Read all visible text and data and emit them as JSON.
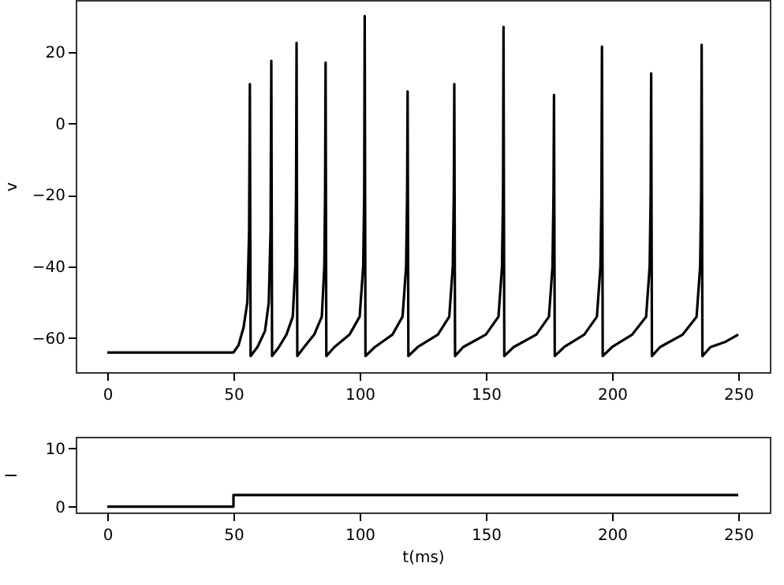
{
  "chart_data": [
    {
      "type": "line",
      "ylabel": "v",
      "color": "#000000",
      "grid": false,
      "x": [
        0,
        50,
        52,
        54,
        55.5,
        56.2,
        56.5,
        56.8,
        59.5,
        62.5,
        64,
        64.7,
        65,
        65.3,
        68,
        71,
        73.5,
        74.5,
        74.8,
        75,
        75.3,
        78,
        82,
        85,
        86,
        86.3,
        86.5,
        86.8,
        90,
        96,
        100,
        101.4,
        101.8,
        102,
        102.3,
        106,
        113,
        117,
        118.4,
        118.8,
        119,
        119.3,
        123,
        131,
        135.5,
        136.9,
        137.3,
        137.5,
        137.8,
        141,
        150,
        155,
        156.4,
        156.8,
        157,
        157.3,
        161,
        170,
        175,
        176.4,
        176.8,
        177,
        177.3,
        181,
        189,
        194,
        195.4,
        195.8,
        196,
        196.3,
        200,
        208,
        213.5,
        214.9,
        215.3,
        215.5,
        215.8,
        219,
        228,
        233.5,
        234.9,
        235.3,
        235.5,
        235.8,
        239,
        245,
        250
      ],
      "values": [
        -64,
        -64,
        -62,
        -57,
        -50,
        -30,
        11,
        -65,
        -62.5,
        -58,
        -50,
        -30,
        17.5,
        -65,
        -62.5,
        -59,
        -54,
        -40,
        -20,
        22.5,
        -65,
        -62.5,
        -59,
        -54,
        -40,
        -20,
        17,
        -65,
        -62.5,
        -59,
        -54,
        -40,
        -20,
        30,
        -65,
        -62.5,
        -59,
        -54,
        -40,
        -20,
        9,
        -65,
        -62.5,
        -59,
        -54,
        -40,
        -20,
        11,
        -65,
        -62.5,
        -59,
        -54,
        -40,
        -20,
        27,
        -65,
        -62.5,
        -59,
        -54,
        -40,
        -20,
        8,
        -65,
        -62.5,
        -59,
        -54,
        -40,
        -20,
        21.5,
        -65,
        -62.5,
        -59,
        -54,
        -40,
        -20,
        14,
        -65,
        -62.5,
        -59,
        -54,
        -40,
        -20,
        22,
        -65,
        -62.5,
        -61,
        -59
      ],
      "xlim": [
        -12.5,
        262.5
      ],
      "xticks": [
        0,
        50,
        100,
        150,
        200,
        250
      ],
      "ylim": [
        -69.5,
        34.5
      ],
      "yticks": [
        -60,
        -40,
        -20,
        0,
        20
      ]
    },
    {
      "type": "step",
      "ylabel": "I",
      "xlabel": "t(ms)",
      "color": "#000000",
      "grid": false,
      "x": [
        0,
        50,
        250
      ],
      "values": [
        0,
        2,
        2
      ],
      "xlim": [
        -12.5,
        262.5
      ],
      "xticks": [
        0,
        50,
        100,
        150,
        200,
        250
      ],
      "ylim": [
        -1,
        12
      ],
      "yticks": [
        0,
        10
      ]
    }
  ]
}
